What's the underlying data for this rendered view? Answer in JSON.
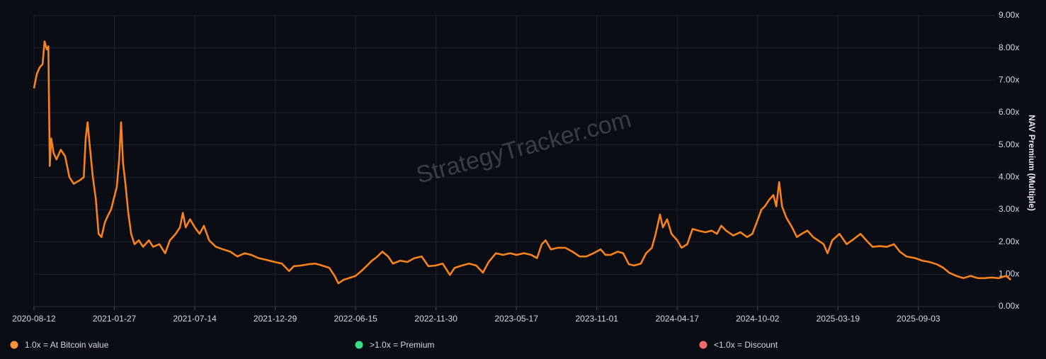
{
  "chart_data": {
    "type": "line",
    "watermark": "StrategyTracker.com",
    "y_axis_label": "NAV Premium (Multiple)",
    "xlim": [
      "2020-08-12",
      "2026-03-19"
    ],
    "xticks": [
      "2020-08-12",
      "2021-01-27",
      "2021-07-14",
      "2021-12-29",
      "2022-06-15",
      "2022-11-30",
      "2023-05-17",
      "2023-11-01",
      "2024-04-17",
      "2024-10-02",
      "2025-03-19",
      "2025-09-03"
    ],
    "ylim": [
      0,
      9
    ],
    "yticks": [
      {
        "value": 0,
        "label": "0.00x"
      },
      {
        "value": 1,
        "label": "1.00x"
      },
      {
        "value": 2,
        "label": "2.00x"
      },
      {
        "value": 3,
        "label": "3.00x"
      },
      {
        "value": 4,
        "label": "4.00x"
      },
      {
        "value": 5,
        "label": "5.00x"
      },
      {
        "value": 6,
        "label": "6.00x"
      },
      {
        "value": 7,
        "label": "7.00x"
      },
      {
        "value": 8,
        "label": "8.00x"
      },
      {
        "value": 9,
        "label": "9.00x"
      }
    ],
    "grid": true,
    "legend_items": [
      {
        "label": "1.0x = At Bitcoin value",
        "color": "#f7953a"
      },
      {
        "label": ">1.0x = Premium",
        "color": "#3ddc84"
      },
      {
        "label": "<1.0x = Discount",
        "color": "#f06a6a"
      }
    ],
    "series": [
      {
        "color": "#f7821b",
        "x": [
          "2020-08-12",
          "2020-08-18",
          "2020-08-24",
          "2020-08-30",
          "2020-09-03",
          "2020-09-08",
          "2020-09-11",
          "2020-09-14",
          "2020-09-17",
          "2020-09-22",
          "2020-09-28",
          "2020-10-07",
          "2020-10-16",
          "2020-10-25",
          "2020-11-03",
          "2020-11-15",
          "2020-11-24",
          "2020-11-28",
          "2020-12-02",
          "2020-12-07",
          "2020-12-13",
          "2020-12-19",
          "2020-12-25",
          "2020-12-31",
          "2021-01-07",
          "2021-01-13",
          "2021-01-20",
          "2021-01-26",
          "2021-02-01",
          "2021-02-06",
          "2021-02-10",
          "2021-02-14",
          "2021-02-19",
          "2021-02-25",
          "2021-03-03",
          "2021-03-10",
          "2021-03-19",
          "2021-03-28",
          "2021-04-09",
          "2021-04-18",
          "2021-05-01",
          "2021-05-13",
          "2021-05-23",
          "2021-06-04",
          "2021-06-13",
          "2021-06-19",
          "2021-06-25",
          "2021-07-04",
          "2021-07-14",
          "2021-07-24",
          "2021-08-02",
          "2021-08-13",
          "2021-08-27",
          "2021-09-11",
          "2021-09-26",
          "2021-10-11",
          "2021-10-26",
          "2021-11-09",
          "2021-11-24",
          "2021-12-09",
          "2021-12-28",
          "2022-01-12",
          "2022-01-27",
          "2022-02-06",
          "2022-02-21",
          "2022-03-08",
          "2022-03-23",
          "2022-04-06",
          "2022-04-21",
          "2022-05-02",
          "2022-05-10",
          "2022-05-21",
          "2022-06-05",
          "2022-06-15",
          "2022-06-27",
          "2022-07-09",
          "2022-07-19",
          "2022-07-29",
          "2022-08-10",
          "2022-08-22",
          "2022-09-01",
          "2022-09-16",
          "2022-10-01",
          "2022-10-16",
          "2022-10-31",
          "2022-11-14",
          "2022-11-29",
          "2022-12-14",
          "2022-12-29",
          "2023-01-08",
          "2023-01-23",
          "2023-02-07",
          "2023-02-22",
          "2023-03-08",
          "2023-03-20",
          "2023-04-04",
          "2023-04-19",
          "2023-05-04",
          "2023-05-17",
          "2023-06-02",
          "2023-06-17",
          "2023-06-29",
          "2023-07-09",
          "2023-07-17",
          "2023-07-28",
          "2023-08-12",
          "2023-08-27",
          "2023-09-11",
          "2023-09-26",
          "2023-10-10",
          "2023-10-25",
          "2023-11-09",
          "2023-11-19",
          "2023-11-30",
          "2023-12-15",
          "2023-12-26",
          "2024-01-07",
          "2024-01-18",
          "2024-02-01",
          "2024-02-12",
          "2024-02-24",
          "2024-03-03",
          "2024-03-12",
          "2024-03-18",
          "2024-03-27",
          "2024-04-05",
          "2024-04-17",
          "2024-04-26",
          "2024-05-08",
          "2024-05-19",
          "2024-05-31",
          "2024-06-15",
          "2024-06-28",
          "2024-07-09",
          "2024-07-18",
          "2024-07-28",
          "2024-08-12",
          "2024-08-27",
          "2024-09-10",
          "2024-09-21",
          "2024-09-30",
          "2024-10-10",
          "2024-10-17",
          "2024-10-26",
          "2024-11-04",
          "2024-11-10",
          "2024-11-16",
          "2024-11-22",
          "2024-12-01",
          "2024-12-13",
          "2024-12-23",
          "2025-01-02",
          "2025-01-14",
          "2025-01-26",
          "2025-02-05",
          "2025-02-17",
          "2025-02-25",
          "2025-03-07",
          "2025-03-22",
          "2025-04-06",
          "2025-04-20",
          "2025-05-05",
          "2025-05-17",
          "2025-05-30",
          "2025-06-14",
          "2025-06-29",
          "2025-07-14",
          "2025-07-26",
          "2025-08-09",
          "2025-08-27",
          "2025-09-11",
          "2025-09-26",
          "2025-10-11",
          "2025-10-25",
          "2025-11-06",
          "2025-11-21",
          "2025-12-06",
          "2025-12-21",
          "2026-01-05",
          "2026-01-19",
          "2026-02-03",
          "2026-02-18",
          "2026-03-05",
          "2026-03-15"
        ],
        "values": [
          6.75,
          7.2,
          7.4,
          7.5,
          8.2,
          7.95,
          8.05,
          4.35,
          5.2,
          4.75,
          4.55,
          4.85,
          4.65,
          4.0,
          3.8,
          3.9,
          4.0,
          5.2,
          5.7,
          4.9,
          4.0,
          3.35,
          2.25,
          2.15,
          2.6,
          2.8,
          3.0,
          3.35,
          3.7,
          4.55,
          5.7,
          4.45,
          3.8,
          2.9,
          2.25,
          1.93,
          2.05,
          1.85,
          2.05,
          1.85,
          1.93,
          1.65,
          2.05,
          2.25,
          2.45,
          2.9,
          2.45,
          2.7,
          2.45,
          2.25,
          2.5,
          2.05,
          1.85,
          1.77,
          1.7,
          1.55,
          1.65,
          1.6,
          1.5,
          1.45,
          1.38,
          1.33,
          1.1,
          1.25,
          1.27,
          1.31,
          1.33,
          1.27,
          1.2,
          0.95,
          0.72,
          0.83,
          0.9,
          0.95,
          1.1,
          1.27,
          1.42,
          1.53,
          1.7,
          1.55,
          1.33,
          1.42,
          1.38,
          1.5,
          1.55,
          1.25,
          1.27,
          1.33,
          0.98,
          1.2,
          1.27,
          1.33,
          1.27,
          1.05,
          1.38,
          1.65,
          1.6,
          1.65,
          1.6,
          1.65,
          1.6,
          1.5,
          1.93,
          2.05,
          1.77,
          1.82,
          1.82,
          1.7,
          1.55,
          1.55,
          1.65,
          1.77,
          1.6,
          1.6,
          1.7,
          1.65,
          1.31,
          1.27,
          1.33,
          1.65,
          1.82,
          2.25,
          2.85,
          2.45,
          2.7,
          2.25,
          2.05,
          1.82,
          1.93,
          2.4,
          2.35,
          2.3,
          2.35,
          2.25,
          2.5,
          2.35,
          2.2,
          2.3,
          2.15,
          2.25,
          2.6,
          3.0,
          3.1,
          3.3,
          3.45,
          3.1,
          3.85,
          3.1,
          2.75,
          2.45,
          2.15,
          2.25,
          2.35,
          2.15,
          2.05,
          1.93,
          1.65,
          2.05,
          2.25,
          1.93,
          2.08,
          2.25,
          2.05,
          1.85,
          1.87,
          1.85,
          1.93,
          1.7,
          1.55,
          1.5,
          1.42,
          1.38,
          1.31,
          1.2,
          1.05,
          0.95,
          0.88,
          0.95,
          0.88,
          0.88,
          0.9,
          0.88,
          0.95,
          0.83
        ]
      }
    ]
  }
}
